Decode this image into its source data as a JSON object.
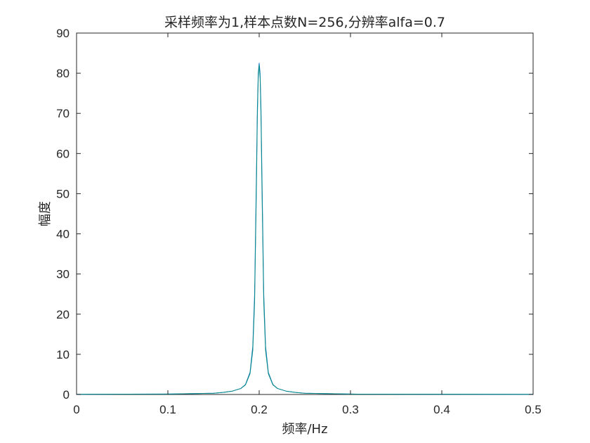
{
  "chart_data": {
    "type": "line",
    "title": "采样频率为1,样本点数N=256,分辨率alfa=0.7",
    "xlabel": "频率/Hz",
    "ylabel": "幅度",
    "xlim": [
      0,
      0.5
    ],
    "ylim": [
      0,
      90
    ],
    "xticks": [
      "0",
      "0.1",
      "0.2",
      "0.3",
      "0.4",
      "0.5"
    ],
    "yticks": [
      "0",
      "10",
      "20",
      "30",
      "40",
      "50",
      "60",
      "70",
      "80",
      "90"
    ],
    "grid": false,
    "legend": "none",
    "series": [
      {
        "color": "#0072BD",
        "x": [
          0,
          0.1,
          0.15,
          0.16,
          0.17,
          0.18,
          0.185,
          0.19,
          0.193,
          0.195,
          0.197,
          0.198,
          0.199,
          0.2,
          0.201,
          0.202,
          0.203,
          0.205,
          0.207,
          0.21,
          0.215,
          0.22,
          0.23,
          0.24,
          0.25,
          0.3,
          0.5
        ],
        "y": [
          0.05,
          0.1,
          0.3,
          0.5,
          0.8,
          1.5,
          2.5,
          5.5,
          12,
          25,
          55,
          71,
          80,
          82.5,
          80,
          71,
          55,
          25,
          12,
          5.5,
          2.5,
          1.5,
          0.8,
          0.5,
          0.3,
          0.1,
          0.05
        ]
      },
      {
        "color": "#0B8A8A",
        "x": [
          0,
          0.1,
          0.15,
          0.16,
          0.17,
          0.18,
          0.185,
          0.19,
          0.193,
          0.195,
          0.197,
          0.198,
          0.199,
          0.2,
          0.201,
          0.202,
          0.203,
          0.205,
          0.207,
          0.21,
          0.215,
          0.22,
          0.23,
          0.24,
          0.25,
          0.3,
          0.5
        ],
        "y": [
          0.05,
          0.1,
          0.3,
          0.5,
          0.8,
          1.5,
          2.4,
          5.2,
          11,
          23,
          52,
          69,
          79,
          82,
          79,
          69,
          52,
          23,
          11,
          5.2,
          2.4,
          1.5,
          0.8,
          0.5,
          0.3,
          0.1,
          0.05
        ]
      }
    ]
  }
}
